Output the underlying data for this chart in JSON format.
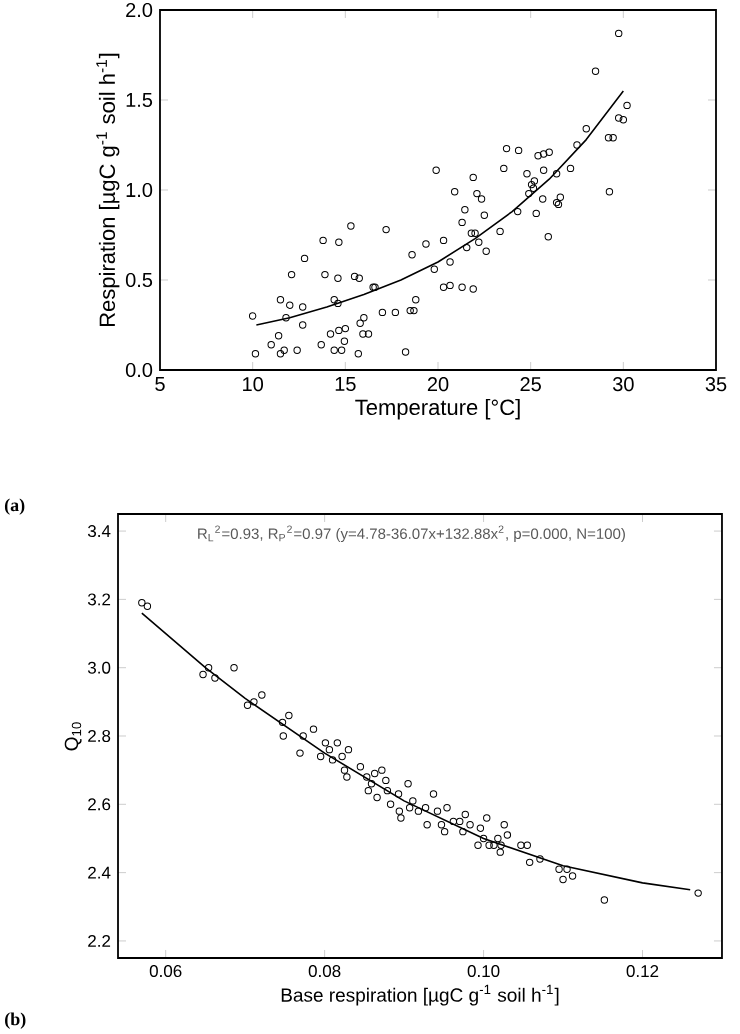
{
  "chart_data": [
    {
      "type": "scatter",
      "xlabel": "Temperature [°C]",
      "ylabel": "Respiration [µgC g$^{-1}$ soil h$^{-1}$]",
      "marker": "circle",
      "xlim": [
        5,
        35
      ],
      "ylim": [
        0,
        2.0
      ],
      "xticks": [
        5,
        10,
        15,
        20,
        25,
        30,
        35
      ],
      "yticks": [
        {
          "value": 0,
          "label": "0.0"
        },
        {
          "value": 0.5,
          "label": "0.5"
        },
        {
          "value": 1.0,
          "label": "1.0"
        },
        {
          "value": 1.5,
          "label": "1.5"
        },
        {
          "value": 2.0,
          "label": "2.0"
        }
      ],
      "annotations": [
        "(a)"
      ],
      "series": [
        {
          "color": "#000000",
          "x": [
            10.0,
            10.15,
            11.0,
            11.4,
            11.5,
            11.7,
            11.5,
            11.8,
            12.0,
            12.1,
            12.4,
            12.7,
            12.7,
            12.8,
            13.7,
            13.8,
            13.9,
            14.2,
            14.4,
            14.4,
            14.6,
            14.65,
            14.6,
            14.65,
            14.8,
            14.95,
            15.0,
            15.3,
            15.5,
            15.7,
            15.75,
            15.8,
            16.0,
            15.95,
            16.25,
            16.5,
            16.6,
            17.0,
            17.2,
            17.7,
            18.25,
            18.5,
            18.7,
            18.6,
            18.8,
            19.35,
            19.8,
            19.9,
            20.3,
            20.3,
            20.65,
            20.65,
            20.9,
            21.3,
            21.3,
            21.45,
            21.55,
            21.8,
            21.9,
            21.9,
            22.0,
            22.1,
            22.2,
            22.35,
            22.5,
            22.6,
            23.35,
            23.55,
            23.7,
            24.35,
            24.3,
            24.8,
            24.9,
            25.05,
            25.15,
            25.2,
            25.3,
            25.4,
            25.65,
            25.7,
            25.7,
            25.95,
            26.0,
            26.4,
            26.4,
            26.5,
            26.6,
            27.15,
            27.5,
            28.0,
            28.5,
            29.2,
            29.45,
            29.25,
            29.75,
            29.75,
            30.0,
            30.2
          ],
          "values": [
            0.3,
            0.09,
            0.14,
            0.19,
            0.09,
            0.11,
            0.39,
            0.29,
            0.36,
            0.53,
            0.11,
            0.35,
            0.25,
            0.62,
            0.14,
            0.72,
            0.53,
            0.2,
            0.11,
            0.39,
            0.37,
            0.22,
            0.51,
            0.71,
            0.11,
            0.16,
            0.23,
            0.8,
            0.52,
            0.09,
            0.51,
            0.26,
            0.29,
            0.2,
            0.2,
            0.46,
            0.46,
            0.32,
            0.78,
            0.32,
            0.1,
            0.33,
            0.33,
            0.64,
            0.39,
            0.7,
            0.56,
            1.11,
            0.46,
            0.72,
            0.6,
            0.47,
            0.99,
            0.46,
            0.82,
            0.89,
            0.68,
            0.76,
            1.07,
            0.45,
            0.76,
            0.98,
            0.71,
            0.95,
            0.86,
            0.66,
            0.77,
            1.12,
            1.23,
            1.22,
            0.88,
            1.09,
            0.98,
            1.03,
            1.01,
            1.05,
            0.87,
            1.19,
            0.95,
            1.2,
            1.11,
            0.74,
            1.21,
            1.09,
            0.93,
            0.92,
            0.96,
            1.12,
            1.25,
            1.34,
            1.66,
            1.29,
            1.29,
            0.99,
            1.87,
            1.4,
            1.39,
            1.47
          ]
        },
        {
          "type": "line",
          "color": "#000000",
          "marker": "none",
          "x": [
            10.2,
            12,
            14,
            16,
            18,
            20,
            22,
            24,
            26,
            28,
            30
          ],
          "values": [
            0.25,
            0.29,
            0.35,
            0.42,
            0.5,
            0.6,
            0.73,
            0.88,
            1.06,
            1.28,
            1.55
          ]
        }
      ]
    },
    {
      "type": "scatter",
      "xlabel": "Base respiration [µgC g$^{-1}$ soil h$^{-1}$]",
      "ylabel": "Q$_{10}$",
      "marker": "circle",
      "xlim": [
        0.054,
        0.13
      ],
      "ylim": [
        2.15,
        3.45
      ],
      "xticks": [
        {
          "value": 0.06,
          "label": "0.06"
        },
        {
          "value": 0.08,
          "label": "0.08"
        },
        {
          "value": 0.1,
          "label": "0.10"
        },
        {
          "value": 0.12,
          "label": "0.12"
        }
      ],
      "yticks": [
        {
          "value": 2.2,
          "label": "2.2"
        },
        {
          "value": 2.4,
          "label": "2.4"
        },
        {
          "value": 2.6,
          "label": "2.6"
        },
        {
          "value": 2.8,
          "label": "2.8"
        },
        {
          "value": 3.0,
          "label": "3.0"
        },
        {
          "value": 3.2,
          "label": "3.2"
        },
        {
          "value": 3.4,
          "label": "3.4"
        }
      ],
      "annotations": [
        "R$_{L}$$^{2}$=0.93, R$_{P}$$^{2}$=0.97 (y=4.78-36.07x+132.88x$^{2}$, p=0.000, N=100)",
        "(b)"
      ],
      "series": [
        {
          "color": "#000000",
          "x": [
            0.057,
            0.0577,
            0.0647,
            0.0654,
            0.0662,
            0.0686,
            0.0703,
            0.0711,
            0.0721,
            0.0747,
            0.0748,
            0.0755,
            0.0769,
            0.0773,
            0.0786,
            0.0795,
            0.0801,
            0.0806,
            0.081,
            0.0816,
            0.0822,
            0.0825,
            0.0828,
            0.083,
            0.0845,
            0.0853,
            0.0855,
            0.0859,
            0.0863,
            0.0866,
            0.0872,
            0.0877,
            0.0879,
            0.0883,
            0.0893,
            0.0894,
            0.0896,
            0.0905,
            0.0907,
            0.0911,
            0.0918,
            0.0927,
            0.0929,
            0.0937,
            0.0942,
            0.0947,
            0.0951,
            0.0954,
            0.0962,
            0.097,
            0.0974,
            0.0977,
            0.0983,
            0.0993,
            0.0996,
            0.1,
            0.1004,
            0.1007,
            0.1013,
            0.1018,
            0.1021,
            0.1022,
            0.1026,
            0.103,
            0.1047,
            0.1055,
            0.1058,
            0.1071,
            0.1095,
            0.11,
            0.1105,
            0.1112,
            0.1152,
            0.127
          ],
          "values": [
            3.19,
            3.18,
            2.98,
            3.0,
            2.97,
            3.0,
            2.89,
            2.9,
            2.92,
            2.84,
            2.8,
            2.86,
            2.75,
            2.8,
            2.82,
            2.74,
            2.78,
            2.76,
            2.73,
            2.78,
            2.74,
            2.7,
            2.68,
            2.76,
            2.71,
            2.68,
            2.64,
            2.66,
            2.69,
            2.62,
            2.7,
            2.67,
            2.64,
            2.6,
            2.63,
            2.58,
            2.56,
            2.66,
            2.59,
            2.61,
            2.58,
            2.59,
            2.54,
            2.63,
            2.58,
            2.54,
            2.52,
            2.59,
            2.55,
            2.55,
            2.52,
            2.57,
            2.54,
            2.48,
            2.53,
            2.5,
            2.56,
            2.48,
            2.48,
            2.5,
            2.46,
            2.48,
            2.54,
            2.51,
            2.48,
            2.48,
            2.43,
            2.44,
            2.41,
            2.38,
            2.41,
            2.39,
            2.32,
            2.34
          ]
        },
        {
          "type": "line",
          "color": "#000000",
          "marker": "none",
          "x": [
            0.057,
            0.065,
            0.07,
            0.08,
            0.09,
            0.1,
            0.11,
            0.12,
            0.126
          ],
          "values": [
            3.16,
            3.0,
            2.91,
            2.75,
            2.61,
            2.5,
            2.42,
            2.37,
            2.35
          ]
        }
      ]
    }
  ]
}
